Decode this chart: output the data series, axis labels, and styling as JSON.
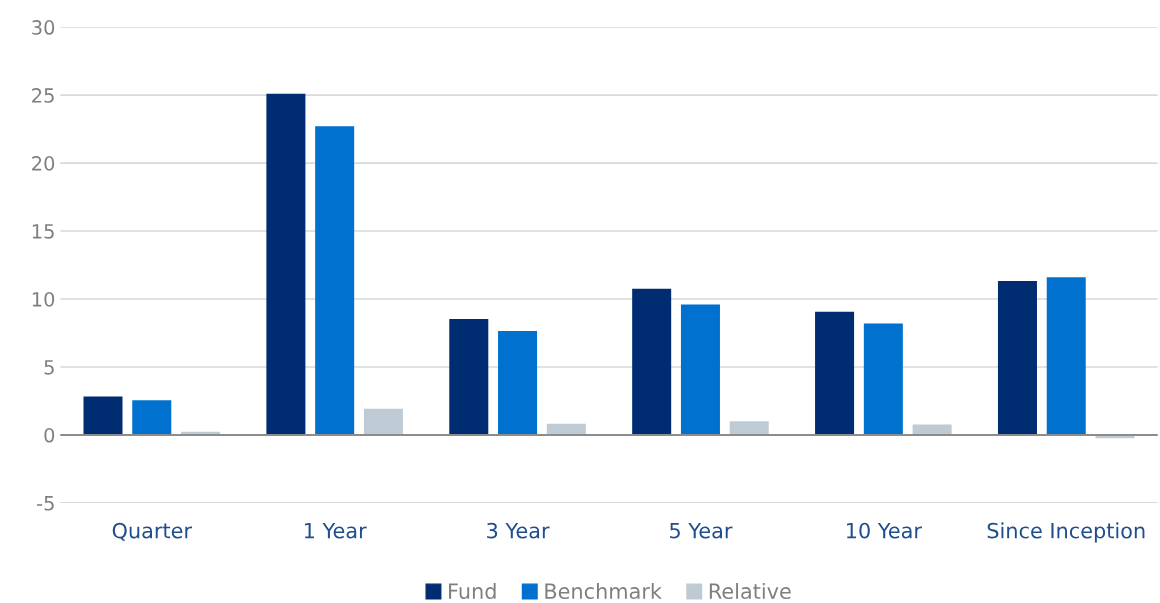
{
  "chart_data": {
    "type": "bar",
    "categories": [
      "Quarter",
      "1 Year",
      "3 Year",
      "5 Year",
      "10 Year",
      "Since Inception"
    ],
    "series": [
      {
        "name": "Fund",
        "color": "#002d72",
        "values": [
          2.83,
          25.1,
          8.53,
          10.76,
          9.07,
          11.33
        ]
      },
      {
        "name": "Benchmark",
        "color": "#0071ce",
        "values": [
          2.55,
          22.7,
          7.64,
          9.59,
          8.2,
          11.6
        ]
      },
      {
        "name": "Relative",
        "color": "#bfcbd4",
        "values": [
          0.24,
          1.93,
          0.82,
          1.01,
          0.76,
          -0.25
        ]
      }
    ],
    "ylim": [
      -5,
      30
    ],
    "yticks": [
      -5,
      0,
      5,
      10,
      15,
      20,
      25,
      30
    ],
    "grid": "y",
    "legend": "bottom"
  }
}
